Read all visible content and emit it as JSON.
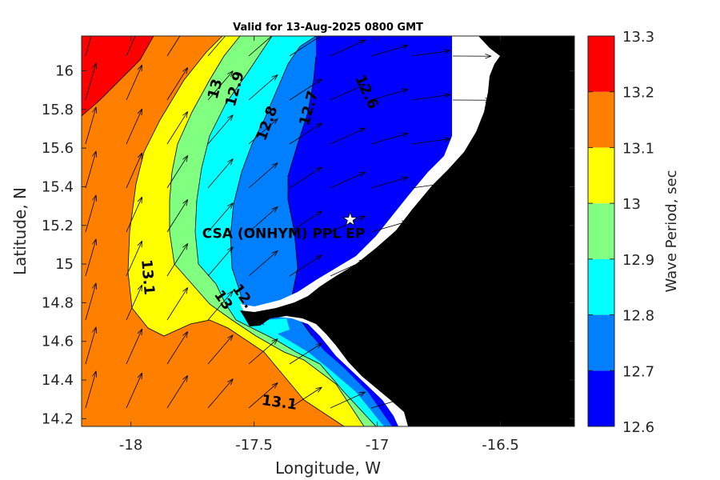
{
  "title": "Valid for 13-Aug-2025 0800 GMT",
  "x_axis": {
    "label": "Longitude, W",
    "range": [
      -18.2,
      -16.2
    ],
    "ticks": [
      {
        "value": -18,
        "label": "-18"
      },
      {
        "value": -17.5,
        "label": "-17.5"
      },
      {
        "value": -17,
        "label": "-17"
      },
      {
        "value": -16.5,
        "label": "-16.5"
      }
    ]
  },
  "y_axis": {
    "label": "Latitude, N",
    "range": [
      14.16,
      16.18
    ],
    "ticks": [
      {
        "value": 14.2,
        "label": "14.2"
      },
      {
        "value": 14.4,
        "label": "14.4"
      },
      {
        "value": 14.6,
        "label": "14.6"
      },
      {
        "value": 14.8,
        "label": "14.8"
      },
      {
        "value": 15,
        "label": "15"
      },
      {
        "value": 15.2,
        "label": "15.2"
      },
      {
        "value": 15.4,
        "label": "15.4"
      },
      {
        "value": 15.6,
        "label": "15.6"
      },
      {
        "value": 15.8,
        "label": "15.8"
      },
      {
        "value": 16,
        "label": "16"
      }
    ]
  },
  "colorbar": {
    "label": "Wave Period, sec",
    "levels": [
      {
        "low": 12.6,
        "high": 12.7,
        "color": "#0000ff"
      },
      {
        "low": 12.7,
        "high": 12.8,
        "color": "#0080ff"
      },
      {
        "low": 12.8,
        "high": 12.9,
        "color": "#00ffff"
      },
      {
        "low": 12.9,
        "high": 13.0,
        "color": "#80ff80"
      },
      {
        "low": 13.0,
        "high": 13.1,
        "color": "#ffff00"
      },
      {
        "low": 13.1,
        "high": 13.2,
        "color": "#ff8000"
      },
      {
        "low": 13.2,
        "high": 13.3,
        "color": "#ff0000"
      }
    ],
    "tick_labels": [
      "12.6",
      "12.7",
      "12.8",
      "12.9",
      "13",
      "13.1",
      "13.2",
      "13.3"
    ]
  },
  "contour_labels": [
    {
      "text": "13",
      "lon": -17.64,
      "lat": 15.9
    },
    {
      "text": "12.9",
      "lon": -17.56,
      "lat": 15.9
    },
    {
      "text": "12.8",
      "lon": -17.43,
      "lat": 15.72
    },
    {
      "text": "12.7",
      "lon": -17.26,
      "lat": 15.8
    },
    {
      "text": "12.6",
      "lon": -17.06,
      "lat": 15.88
    },
    {
      "text": "13.1",
      "lon": -17.95,
      "lat": 14.93
    },
    {
      "text": "13",
      "lon": -17.64,
      "lat": 14.8
    },
    {
      "text": "12.",
      "lon": -17.56,
      "lat": 14.82
    },
    {
      "text": "13.1",
      "lon": -17.4,
      "lat": 14.26
    }
  ],
  "site": {
    "name": "CSA (ONHYM) PPL EP",
    "lon": -17.11,
    "lat": 15.23,
    "marker": "star-icon"
  },
  "colors": {
    "land": "#000000",
    "coast_strip": "#ffffff",
    "contour_line": "#000000",
    "arrow": "#000000"
  },
  "field_description": "Wave period field in the 12.6 to 13.3 s range, highest offshore west, decreasing eastward toward the coast"
}
